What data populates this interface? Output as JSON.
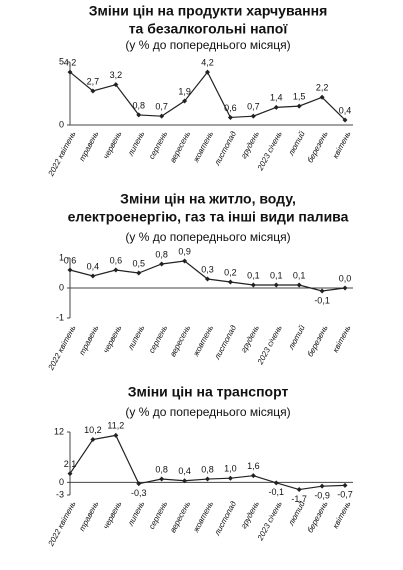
{
  "chart_data": [
    {
      "type": "line",
      "title": [
        "Зміни цін на продукти харчування",
        "та безалкогольні напої"
      ],
      "subtitle": "(у % до попереднього місяця)",
      "categories": [
        "2022 квітень",
        "травень",
        "червень",
        "липень",
        "серпень",
        "вересень",
        "жовтень",
        "листопад",
        "грудень",
        "2023 січень",
        "лютий",
        "березень",
        "квітень"
      ],
      "values": [
        4.2,
        2.7,
        3.2,
        0.8,
        0.7,
        1.9,
        4.2,
        0.6,
        0.7,
        1.4,
        1.5,
        2.2,
        0.4
      ],
      "value_labels": [
        "4,2",
        "2,7",
        "3,2",
        "0,8",
        "0,7",
        "1,9",
        "4,2",
        "0,6",
        "0,7",
        "1,4",
        "1,5",
        "2,2",
        "0,4"
      ],
      "color": "#222222",
      "ylim": [
        0,
        5
      ],
      "yticks": [
        0,
        5
      ]
    },
    {
      "type": "line",
      "title": [
        "Зміни цін на житло, воду,",
        "електроенергію, газ та інші види палива"
      ],
      "subtitle": "(у % до попереднього місяця)",
      "categories": [
        "2022 квітень",
        "травень",
        "червень",
        "липень",
        "серпень",
        "вересень",
        "жовтень",
        "листопад",
        "грудень",
        "2023 січень",
        "лютий",
        "березень",
        "квітень"
      ],
      "values": [
        0.6,
        0.4,
        0.6,
        0.5,
        0.8,
        0.9,
        0.3,
        0.2,
        0.1,
        0.1,
        0.1,
        -0.1,
        0.0
      ],
      "value_labels": [
        "0,6",
        "0,4",
        "0,6",
        "0,5",
        "0,8",
        "0,9",
        "0,3",
        "0,2",
        "0,1",
        "0,1",
        "0,1",
        "-0,1",
        "0,0"
      ],
      "color": "#222222",
      "ylim": [
        -1,
        1
      ],
      "yticks": [
        -1,
        0,
        1
      ]
    },
    {
      "type": "line",
      "title": [
        "Зміни цін на транспорт"
      ],
      "subtitle": "(у % до попереднього місяця)",
      "categories": [
        "2022 квітень",
        "травень",
        "червень",
        "липень",
        "серпень",
        "вересень",
        "жовтень",
        "листопад",
        "грудень",
        "2023 січень",
        "лютий",
        "березень",
        "квітень"
      ],
      "values": [
        2.1,
        10.2,
        11.2,
        -0.3,
        0.8,
        0.4,
        0.8,
        1.0,
        1.6,
        -0.1,
        -1.7,
        -0.9,
        -0.7
      ],
      "value_labels": [
        "2,1",
        "10,2",
        "11,2",
        "-0,3",
        "0,8",
        "0,4",
        "0,8",
        "1,0",
        "1,6",
        "-0,1",
        "-1,7",
        "-0,9",
        "-0,7"
      ],
      "color": "#222222",
      "ylim": [
        -3,
        12
      ],
      "yticks": [
        -3,
        0,
        12
      ]
    }
  ]
}
